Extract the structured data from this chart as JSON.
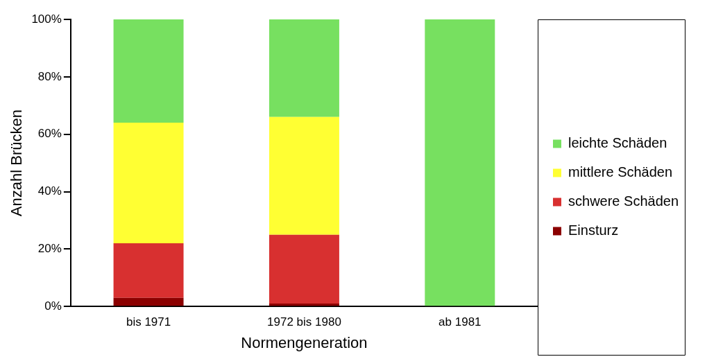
{
  "chart_data": {
    "type": "bar",
    "xlabel": "Normengeneration",
    "ylabel": "Anzahl Brücken",
    "categories": [
      "bis 1971",
      "1972 bis 1980",
      "ab 1981"
    ],
    "stacked": true,
    "ylim": [
      0,
      100
    ],
    "yticks": [
      {
        "value": 0,
        "label": "0%"
      },
      {
        "value": 20,
        "label": "20%"
      },
      {
        "value": 40,
        "label": "40%"
      },
      {
        "value": 60,
        "label": "60%"
      },
      {
        "value": 80,
        "label": "80%"
      },
      {
        "value": 100,
        "label": "100%"
      }
    ],
    "grid": false,
    "legend": "right",
    "series": [
      {
        "name": "Einsturz",
        "color": "#8b0000",
        "values": [
          3,
          1,
          0
        ]
      },
      {
        "name": "schwere Schäden",
        "color": "#d83030",
        "values": [
          19,
          24,
          0
        ]
      },
      {
        "name": "mittlere Schäden",
        "color": "#ffff33",
        "values": [
          42,
          41,
          0
        ]
      },
      {
        "name": "leichte Schäden",
        "color": "#77e060",
        "values": [
          36,
          34,
          100
        ]
      }
    ]
  }
}
